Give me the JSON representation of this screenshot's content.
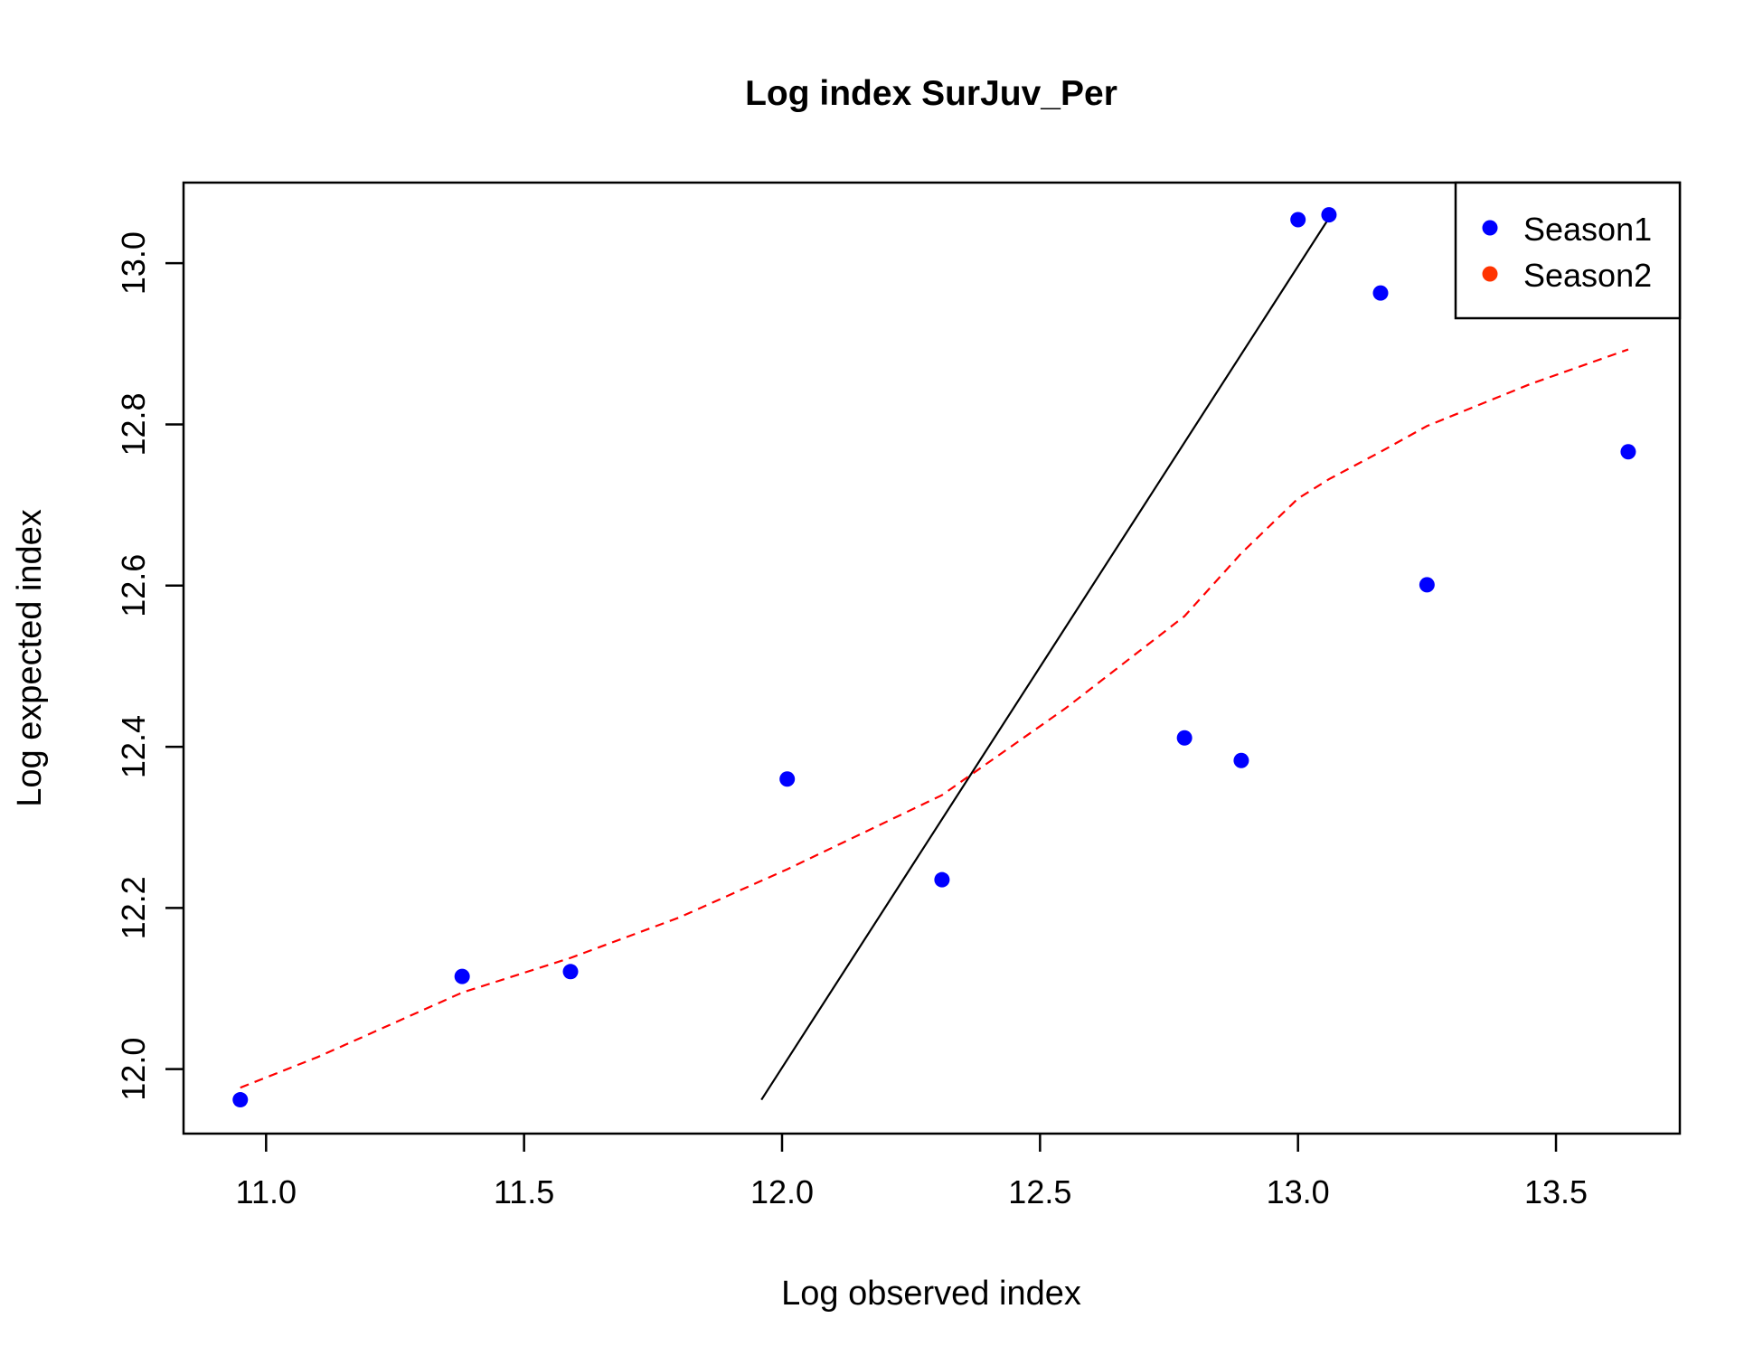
{
  "chart_data": {
    "type": "scatter",
    "title": "Log index SurJuv_Per",
    "xlabel": "Log observed index",
    "ylabel": "Log expected index",
    "xlim": [
      10.84,
      13.74
    ],
    "ylim": [
      11.92,
      13.1
    ],
    "x_ticks": [
      {
        "value": 11.0,
        "label": "11.0"
      },
      {
        "value": 11.5,
        "label": "11.5"
      },
      {
        "value": 12.0,
        "label": "12.0"
      },
      {
        "value": 12.5,
        "label": "12.5"
      },
      {
        "value": 13.0,
        "label": "13.0"
      },
      {
        "value": 13.5,
        "label": "13.5"
      }
    ],
    "y_ticks": [
      {
        "value": 12.0,
        "label": "12.0"
      },
      {
        "value": 12.2,
        "label": "12.2"
      },
      {
        "value": 12.4,
        "label": "12.4"
      },
      {
        "value": 12.6,
        "label": "12.6"
      },
      {
        "value": 12.8,
        "label": "12.8"
      },
      {
        "value": 13.0,
        "label": "13.0"
      }
    ],
    "grid": false,
    "legend_position": "top-right",
    "series": [
      {
        "name": "Season1",
        "kind": "points",
        "color": "#0000ff",
        "points": [
          {
            "x": 10.95,
            "y": 11.962
          },
          {
            "x": 11.38,
            "y": 12.115
          },
          {
            "x": 11.59,
            "y": 12.121
          },
          {
            "x": 12.01,
            "y": 12.36
          },
          {
            "x": 12.31,
            "y": 12.235
          },
          {
            "x": 12.78,
            "y": 12.411
          },
          {
            "x": 12.89,
            "y": 12.383
          },
          {
            "x": 13.0,
            "y": 13.054
          },
          {
            "x": 13.06,
            "y": 13.06
          },
          {
            "x": 13.16,
            "y": 12.963
          },
          {
            "x": 13.25,
            "y": 12.601
          },
          {
            "x": 13.64,
            "y": 12.766
          }
        ]
      },
      {
        "name": "Season2",
        "kind": "points",
        "color": "#ff3300",
        "points": []
      }
    ],
    "reference_line": {
      "color": "#000000",
      "points": [
        {
          "x": 11.96,
          "y": 11.962
        },
        {
          "x": 13.06,
          "y": 13.056
        }
      ]
    },
    "smooth_line": {
      "color": "#ff0000",
      "style": "dashed",
      "points": [
        {
          "x": 10.95,
          "y": 11.977
        },
        {
          "x": 11.1,
          "y": 12.015
        },
        {
          "x": 11.38,
          "y": 12.095
        },
        {
          "x": 11.59,
          "y": 12.138
        },
        {
          "x": 11.8,
          "y": 12.188
        },
        {
          "x": 12.01,
          "y": 12.248
        },
        {
          "x": 12.31,
          "y": 12.34
        },
        {
          "x": 12.55,
          "y": 12.448
        },
        {
          "x": 12.78,
          "y": 12.562
        },
        {
          "x": 12.89,
          "y": 12.64
        },
        {
          "x": 13.0,
          "y": 12.708
        },
        {
          "x": 13.06,
          "y": 12.732
        },
        {
          "x": 13.16,
          "y": 12.766
        },
        {
          "x": 13.25,
          "y": 12.798
        },
        {
          "x": 13.45,
          "y": 12.85
        },
        {
          "x": 13.64,
          "y": 12.893
        }
      ]
    }
  }
}
